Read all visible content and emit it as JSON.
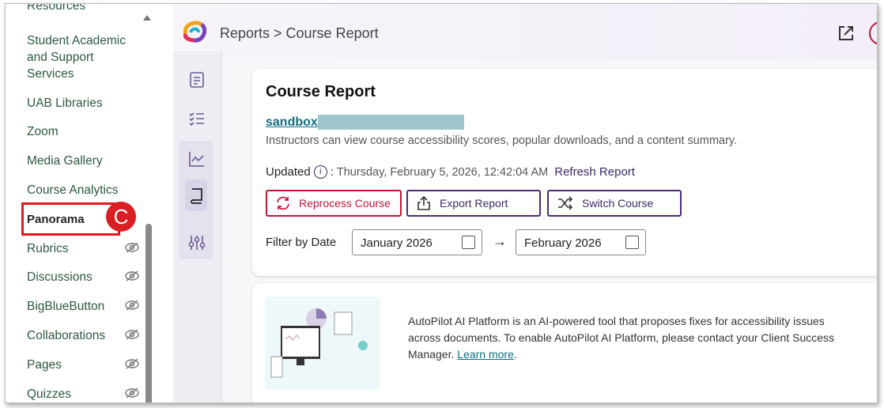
{
  "sidebar": {
    "items": [
      {
        "label": "Resources"
      },
      {
        "label": "Student Academic and Support Services"
      },
      {
        "label": "UAB Libraries"
      },
      {
        "label": "Zoom"
      },
      {
        "label": "Media Gallery"
      },
      {
        "label": "Course Analytics"
      },
      {
        "label": "Panorama",
        "active": true
      },
      {
        "label": "Rubrics",
        "hidden": true
      },
      {
        "label": "Discussions",
        "hidden": true
      },
      {
        "label": "BigBlueButton",
        "hidden": true
      },
      {
        "label": "Collaborations",
        "hidden": true
      },
      {
        "label": "Pages",
        "hidden": true
      },
      {
        "label": "Quizzes",
        "hidden": true
      }
    ],
    "callout": "C"
  },
  "header": {
    "breadcrumb": "Reports > Course Report",
    "icons": [
      "panorama-logo",
      "external-link-icon"
    ]
  },
  "rail": {
    "icons": [
      "document-icon",
      "checklist-icon",
      "chart-icon",
      "book-icon",
      "sliders-icon"
    ]
  },
  "report": {
    "title": "Course Report",
    "course_link": "sandbox",
    "description": "Instructors can view course accessibility scores, popular downloads, and a content summary.",
    "updated_label": "Updated",
    "updated_value": "Thursday, February 5, 2026, 12:42:04 AM",
    "refresh": "Refresh Report",
    "buttons": {
      "reprocess": "Reprocess Course",
      "export": "Export Report",
      "switch": "Switch Course"
    },
    "filter_label": "Filter by Date",
    "from": "January 2026",
    "to": "February 2026",
    "arrow": "→"
  },
  "autopilot": {
    "text": "AutoPilot AI Platform is an AI-powered tool that proposes fixes for accessibility issues across documents. To enable AutoPilot AI Platform, please contact your Client Success Manager.",
    "learn_more": "Learn more",
    "period": "."
  },
  "colors": {
    "sidebar_text": "#2d5a3c",
    "accent": "#4a2c7a",
    "danger": "#c0163c",
    "link": "#0f6d83",
    "callout": "#e8151b"
  }
}
